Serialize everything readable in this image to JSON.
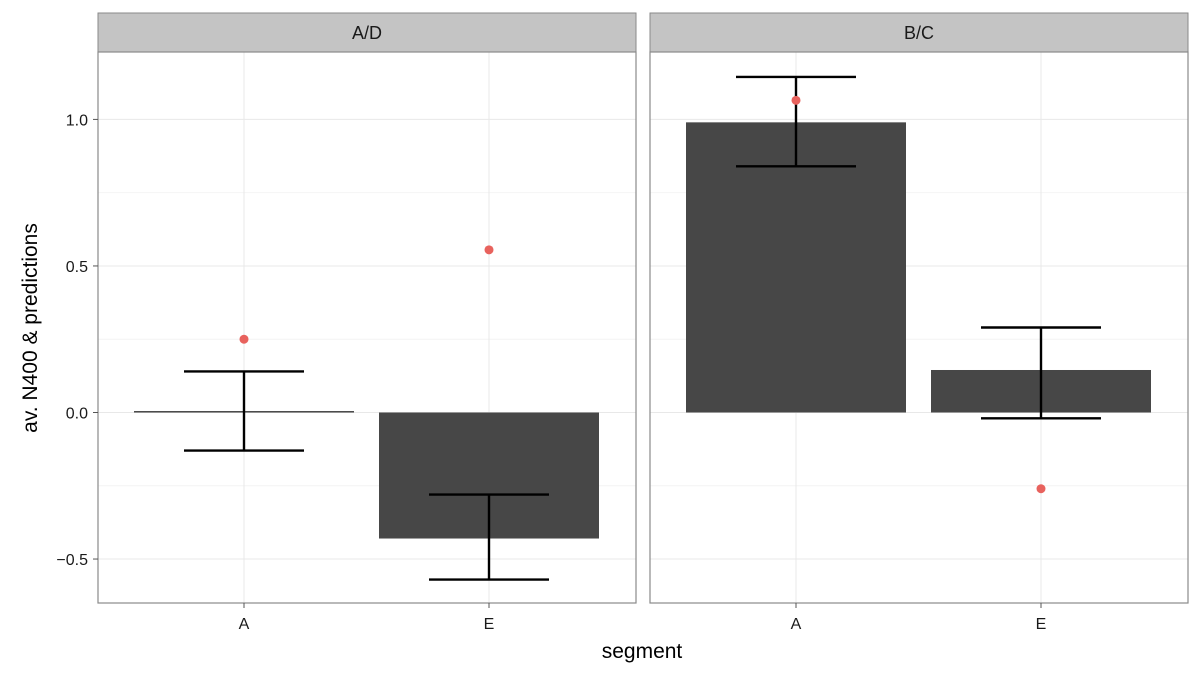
{
  "chart_data": {
    "type": "bar",
    "xlabel": "segment",
    "ylabel": "av. N400 & predictions",
    "ylim": [
      -0.65,
      1.23
    ],
    "yticks": [
      -0.5,
      0.0,
      0.5,
      1.0
    ],
    "ytick_labels": [
      "−0.5",
      "0.0",
      "0.5",
      "1.0"
    ],
    "categories": [
      "A",
      "E"
    ],
    "grid": true,
    "colors": {
      "bar": "#474747",
      "point": "#e8625d",
      "errorbar": "#000000",
      "strip": "#c4c4c4"
    },
    "facets": [
      {
        "label": "A/D",
        "bars": [
          0.005,
          -0.43
        ],
        "error_low": [
          -0.13,
          -0.57
        ],
        "error_high": [
          0.14,
          -0.28
        ],
        "predictions": [
          0.25,
          0.555
        ]
      },
      {
        "label": "B/C",
        "bars": [
          0.99,
          0.145
        ],
        "error_low": [
          0.84,
          -0.02
        ],
        "error_high": [
          1.145,
          0.29
        ],
        "predictions": [
          1.065,
          -0.26
        ]
      }
    ]
  }
}
